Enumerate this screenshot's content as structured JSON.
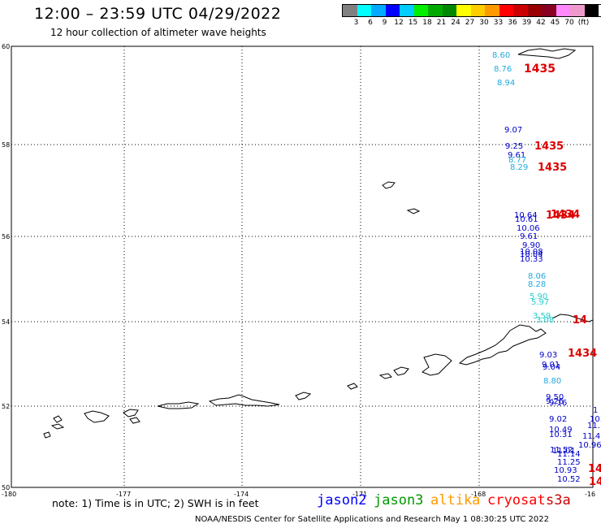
{
  "header": {
    "title": "12:00 – 23:59 UTC 04/29/2022",
    "subtitle": "12 hour collection of altimeter wave heights"
  },
  "legend": {
    "colors": [
      "#808080",
      "#00ffff",
      "#00aaff",
      "#0000ff",
      "#00ccff",
      "#00ee00",
      "#00aa00",
      "#008800",
      "#ffff00",
      "#ffcc00",
      "#ff9900",
      "#ff0000",
      "#cc0000",
      "#990000",
      "#880022",
      "#ff88ff",
      "#ee99cc",
      "#000000"
    ],
    "labels": [
      "3",
      "6",
      "9",
      "12",
      "15",
      "18",
      "21",
      "24",
      "27",
      "30",
      "33",
      "36",
      "39",
      "42",
      "45",
      "70",
      "(ft)"
    ]
  },
  "axes": {
    "lat_labels": [
      "60",
      "58",
      "56",
      "54",
      "52",
      "50"
    ],
    "lon_labels": [
      "-180",
      "-177",
      "-174",
      "-171",
      "-168",
      "-16"
    ]
  },
  "observations": [
    {
      "text": "8.60",
      "color": "#22aadd"
    },
    {
      "text": "8.76",
      "color": "#22aadd"
    },
    {
      "text": "8.94",
      "color": "#22aadd"
    },
    {
      "text": "1435",
      "color": "#dd0000"
    },
    {
      "text": "9.07",
      "color": "#0000cc"
    },
    {
      "text": "9.25",
      "color": "#0000cc"
    },
    {
      "text": "9.61",
      "color": "#0000cc"
    },
    {
      "text": "8.77",
      "color": "#22aadd"
    },
    {
      "text": "8.29",
      "color": "#22aadd"
    },
    {
      "text": "1435",
      "color": "#dd0000"
    },
    {
      "text": "1435",
      "color": "#dd0000"
    },
    {
      "text": "10.64",
      "color": "#0000cc"
    },
    {
      "text": "10.61",
      "color": "#0000cc"
    },
    {
      "text": "10.06",
      "color": "#0000cc"
    },
    {
      "text": "9.61",
      "color": "#0000cc"
    },
    {
      "text": "1434",
      "color": "#dd0000"
    },
    {
      "text": "1434",
      "color": "#dd0000"
    },
    {
      "text": "9.90",
      "color": "#0000cc"
    },
    {
      "text": "10.08",
      "color": "#0000cc"
    },
    {
      "text": "10.04",
      "color": "#0000cc"
    },
    {
      "text": "10.33",
      "color": "#0000cc"
    },
    {
      "text": "8.06",
      "color": "#22aadd"
    },
    {
      "text": "8.28",
      "color": "#22aadd"
    },
    {
      "text": "5.90",
      "color": "#22cccc"
    },
    {
      "text": "5.97",
      "color": "#22cccc"
    },
    {
      "text": "3.59",
      "color": "#22cccc"
    },
    {
      "text": "3.08",
      "color": "#22cccc"
    },
    {
      "text": "14",
      "color": "#dd0000"
    },
    {
      "text": "9.03",
      "color": "#0000cc"
    },
    {
      "text": "9.01",
      "color": "#0000cc"
    },
    {
      "text": "9.04",
      "color": "#0000cc"
    },
    {
      "text": "1434",
      "color": "#dd0000"
    },
    {
      "text": "8.80",
      "color": "#22aadd"
    },
    {
      "text": "9.50",
      "color": "#0000cc"
    },
    {
      "text": "9.26",
      "color": "#0000cc"
    },
    {
      "text": "9.16",
      "color": "#0000cc"
    },
    {
      "text": "9.02",
      "color": "#0000cc"
    },
    {
      "text": "10.49",
      "color": "#0000cc"
    },
    {
      "text": "10.31",
      "color": "#0000cc"
    },
    {
      "text": "11.52",
      "color": "#0000cc"
    },
    {
      "text": "11.01",
      "color": "#0000cc"
    },
    {
      "text": "11.14",
      "color": "#0000cc"
    },
    {
      "text": "11.25",
      "color": "#0000cc"
    },
    {
      "text": "10.96",
      "color": "#0000cc"
    },
    {
      "text": "10.93",
      "color": "#0000cc"
    },
    {
      "text": "10.52",
      "color": "#0000cc"
    },
    {
      "text": "1",
      "color": "#0000cc"
    },
    {
      "text": "10.",
      "color": "#0000cc"
    },
    {
      "text": "11.",
      "color": "#0000cc"
    },
    {
      "text": "11.4",
      "color": "#0000cc"
    },
    {
      "text": "14",
      "color": "#dd0000"
    },
    {
      "text": "14",
      "color": "#dd0000"
    }
  ],
  "footer": {
    "note": "note: 1) Time is in UTC; 2) SWH is in feet",
    "satellites": [
      {
        "name": "jason2",
        "color": "#0000ff"
      },
      {
        "name": "jason3",
        "color": "#009900"
      },
      {
        "name": "altika",
        "color": "#ff9900"
      },
      {
        "name": "cryosat",
        "color": "#ff0000"
      },
      {
        "name": "s3a",
        "color": "#cc0000"
      }
    ],
    "credit": "NOAA/NESDIS Center for Satellite Applications and Research   May  1 08:30:25 UTC 2022"
  }
}
